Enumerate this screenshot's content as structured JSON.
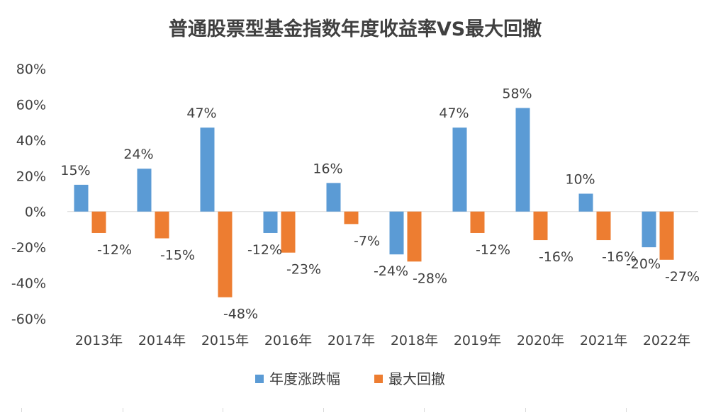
{
  "chart_data": {
    "type": "bar",
    "title": "普通股票型基金指数年度收益率VS最大回撤",
    "categories": [
      "2013年",
      "2014年",
      "2015年",
      "2016年",
      "2017年",
      "2018年",
      "2019年",
      "2020年",
      "2021年",
      "2022年"
    ],
    "series": [
      {
        "name": "年度涨跌幅",
        "color": "#5b9bd5",
        "values": [
          15,
          24,
          47,
          -12,
          16,
          -24,
          47,
          58,
          10,
          -20
        ],
        "labels": [
          "15%",
          "24%",
          "47%",
          "-12%",
          "16%",
          "-24%",
          "47%",
          "58%",
          "10%",
          "-20%"
        ]
      },
      {
        "name": "最大回撤",
        "color": "#ed7d31",
        "values": [
          -12,
          -15,
          -48,
          -23,
          -7,
          -28,
          -12,
          -16,
          -16,
          -27
        ],
        "labels": [
          "-12%",
          "-15%",
          "-48%",
          "-23%",
          "-7%",
          "-28%",
          "-12%",
          "-16%",
          "-16%",
          "-27%"
        ]
      }
    ],
    "ylim": [
      -60,
      80
    ],
    "yticks": [
      80,
      60,
      40,
      20,
      0,
      -20,
      -40,
      -60
    ],
    "ytick_labels": [
      "80%",
      "60%",
      "40%",
      "20%",
      "0%",
      "-20%",
      "-40%",
      "-60%"
    ],
    "xlabel": "",
    "ylabel": "",
    "grid": false,
    "legend_position": "bottom"
  }
}
